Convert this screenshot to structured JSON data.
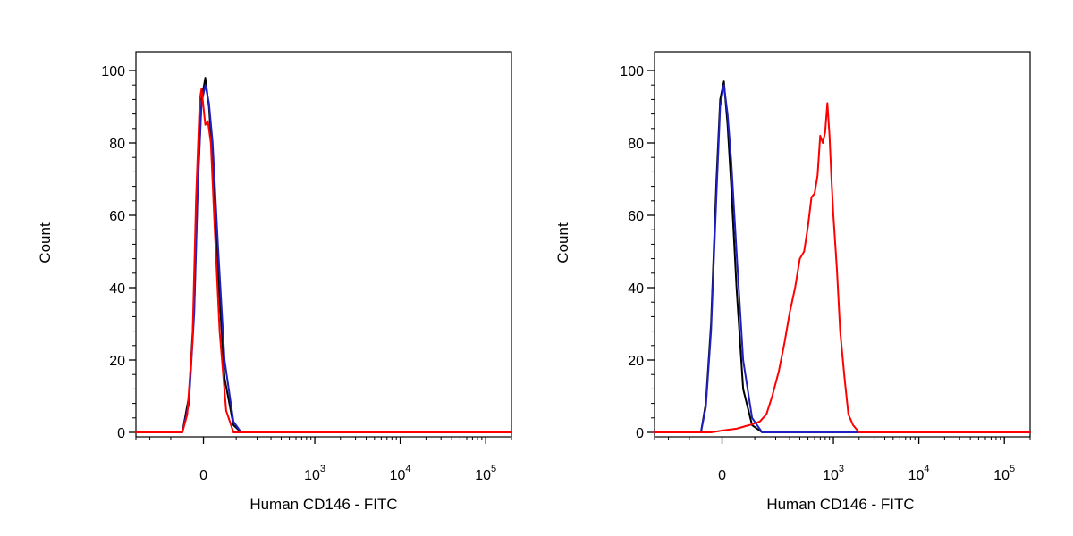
{
  "chart_data": [
    {
      "type": "line",
      "xlabel": "Human CD146 - FITC",
      "ylabel": "Count",
      "x_scale": "biexponential",
      "xlim": [
        -300,
        200000
      ],
      "ylim": [
        0,
        100
      ],
      "y_ticks": [
        "0",
        "20",
        "40",
        "60",
        "80",
        "100"
      ],
      "x_ticks": [
        {
          "base": "0",
          "exp": ""
        },
        {
          "base": "10",
          "exp": "3"
        },
        {
          "base": "10",
          "exp": "4"
        },
        {
          "base": "10",
          "exp": "5"
        }
      ],
      "series": [
        {
          "color": "#000000",
          "x": [
            -300,
            -60,
            -40,
            -25,
            -15,
            -5,
            5,
            15,
            25,
            40,
            60,
            90,
            120,
            180,
            200000
          ],
          "y": [
            0,
            0,
            10,
            35,
            70,
            92,
            98,
            90,
            75,
            45,
            15,
            2,
            0,
            0,
            0
          ]
        },
        {
          "color": "#2020c0",
          "x": [
            -300,
            -60,
            -40,
            -25,
            -15,
            -5,
            5,
            15,
            25,
            40,
            60,
            90,
            120,
            180,
            200000
          ],
          "y": [
            0,
            0,
            8,
            33,
            68,
            91,
            96,
            91,
            80,
            52,
            20,
            3,
            0,
            0,
            0
          ]
        },
        {
          "color": "#ff0000",
          "x": [
            -300,
            -60,
            -45,
            -30,
            -20,
            -10,
            -5,
            5,
            12,
            20,
            30,
            45,
            65,
            90,
            130,
            200000
          ],
          "y": [
            0,
            0,
            5,
            25,
            65,
            92,
            95,
            85,
            86,
            80,
            58,
            28,
            6,
            0,
            0,
            0
          ]
        }
      ]
    },
    {
      "type": "line",
      "xlabel": "Human CD146 - FITC",
      "ylabel": "Count",
      "x_scale": "biexponential",
      "xlim": [
        -300,
        200000
      ],
      "ylim": [
        0,
        100
      ],
      "y_ticks": [
        "0",
        "20",
        "40",
        "60",
        "80",
        "100"
      ],
      "x_ticks": [
        {
          "base": "0",
          "exp": ""
        },
        {
          "base": "10",
          "exp": "3"
        },
        {
          "base": "10",
          "exp": "4"
        },
        {
          "base": "10",
          "exp": "5"
        }
      ],
      "series": [
        {
          "color": "#000000",
          "x": [
            -300,
            -60,
            -45,
            -30,
            -15,
            -5,
            5,
            15,
            25,
            40,
            60,
            90,
            130,
            200,
            200000
          ],
          "y": [
            0,
            0,
            8,
            30,
            70,
            92,
            97,
            85,
            68,
            40,
            12,
            2,
            0,
            0,
            0
          ]
        },
        {
          "color": "#2020c0",
          "x": [
            -300,
            -60,
            -45,
            -30,
            -15,
            -5,
            5,
            15,
            25,
            40,
            60,
            90,
            130,
            200,
            200000
          ],
          "y": [
            0,
            0,
            7,
            28,
            66,
            90,
            96,
            88,
            75,
            50,
            20,
            4,
            0,
            0,
            0
          ]
        },
        {
          "color": "#ff0000",
          "x": [
            -300,
            -30,
            0,
            40,
            80,
            120,
            150,
            180,
            220,
            260,
            300,
            350,
            400,
            450,
            500,
            550,
            600,
            650,
            700,
            750,
            800,
            850,
            900,
            950,
            1000,
            1100,
            1200,
            1350,
            1500,
            1700,
            2000,
            2500,
            200000
          ],
          "y": [
            0,
            0,
            0.5,
            1,
            2,
            3,
            5,
            10,
            17,
            25,
            33,
            40,
            48,
            50,
            57,
            65,
            66,
            71,
            82,
            80,
            83,
            91,
            82,
            70,
            60,
            45,
            28,
            15,
            5,
            2,
            0,
            0,
            0
          ]
        }
      ]
    }
  ]
}
